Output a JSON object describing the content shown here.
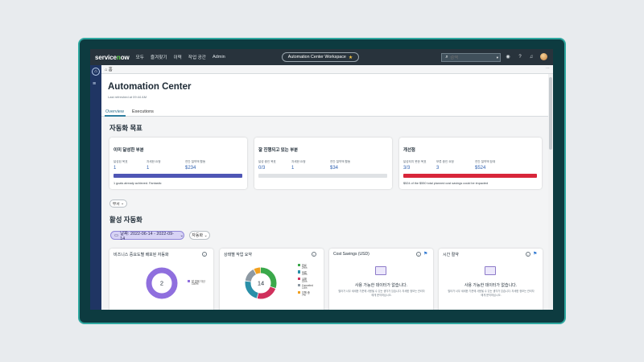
{
  "colors": {
    "bezel": "#0d3b40",
    "bezel_border": "#2fa8a0",
    "topbar": "#28333c",
    "rail": "#1f3563",
    "achieved_bar": "#4f56b5",
    "progress_bar": "#dfe2e5",
    "improve_bar": "#d8263a",
    "value_text": "#2c5fb0",
    "accent_purple": "#8f6fde"
  },
  "topnav": {
    "logo_prefix": "service",
    "logo_accent": "n",
    "logo_suffix": "w",
    "items": [
      "모두",
      "즐겨찾기",
      "이력",
      "작업 공간",
      "Admin"
    ],
    "workspace": "Automation Center Workspace",
    "search_placeholder": "검색",
    "icons": [
      "search-icon",
      "dropdown-icon",
      "globe-icon",
      "help-icon",
      "bell-icon",
      "avatar"
    ]
  },
  "tabbar": {
    "home_tab": "홈",
    "more": "⋯"
  },
  "page": {
    "title": "Automation Center",
    "refreshed": "Last refreshed at 09:44 AM",
    "tabs": [
      "Overview",
      "Executions"
    ]
  },
  "goals": {
    "heading": "자동화 목표",
    "cards": [
      {
        "title": "이미 달성한 부분",
        "labels": [
          "달성된 목표",
          "자세한 요청",
          "연간 절약액 활동"
        ],
        "values": [
          "1",
          "1",
          "$234"
        ],
        "bar_fill": 1.0,
        "note": "1 goals already achieved. Fantastic"
      },
      {
        "title": "잘 진행되고 있는 부분",
        "labels": [
          "달성 중인 목표",
          "자세한 요청",
          "연간 절약액 활동"
        ],
        "values": [
          "0/3",
          "1",
          "$34"
        ],
        "bar_fill": 0.0,
        "note": ""
      },
      {
        "title": "개선점",
        "labels": [
          "달성되지 못한 목표",
          "보류 중인 요청",
          "연간 절약액 잠재"
        ],
        "values": [
          "3/3",
          "3",
          "$524"
        ],
        "bar_fill": 1.0,
        "note": "$524 of the $550 total planned cost savings could be impacted"
      }
    ],
    "more_button": "부서"
  },
  "active": {
    "heading": "활성 자동화",
    "date_filter": "날짜: 2022-06-14 - 2022-09-14",
    "filter2": "자동화"
  },
  "widgets": [
    {
      "title": "비즈니스 중요도별 배포된 자동화",
      "center": "2",
      "legend": [
        {
          "label": "알 없음 자산",
          "pct": "100%",
          "color": "#8f6fde"
        }
      ],
      "slices": [
        {
          "value": 100,
          "color": "#8f6fde"
        }
      ]
    },
    {
      "title": "상태별 작업 요약",
      "center": "14",
      "legend": [
        {
          "label": "완료",
          "pct": "29%",
          "color": "#3aa84a"
        },
        {
          "label": "보류",
          "pct": "22%",
          "color": "#2a8fa8"
        },
        {
          "label": "실패",
          "pct": "22%",
          "color": "#d0305c"
        },
        {
          "label": "Canceled",
          "pct": "14%",
          "color": "#8d99a3"
        },
        {
          "label": "진행 중",
          "pct": "7%",
          "color": "#f0a020"
        }
      ],
      "slices": [
        {
          "value": 29,
          "color": "#3aa84a"
        },
        {
          "value": 22,
          "color": "#d0305c"
        },
        {
          "value": 22,
          "color": "#2a8fa8"
        },
        {
          "value": 14,
          "color": "#8d99a3"
        },
        {
          "value": 7,
          "color": "#f0a020"
        }
      ]
    },
    {
      "title": "Cost Savings (USD)",
      "nodata_title": "사용 가능한 데이터가 없습니다.",
      "nodata_desc": "필터가 너무 세세한 기준에 사용될 수 있는 생각가 있습니다. 자세한 정보는 관리자에게 문의하십시오."
    },
    {
      "title": "시간 절약",
      "nodata_title": "사용 가능한 데이터가 없습니다.",
      "nodata_desc": "필터가 너무 세세한 기준에 사용될 수 있는 생각가 있습니다. 자세한 정보는 관리자에게 문의하십시오."
    }
  ]
}
